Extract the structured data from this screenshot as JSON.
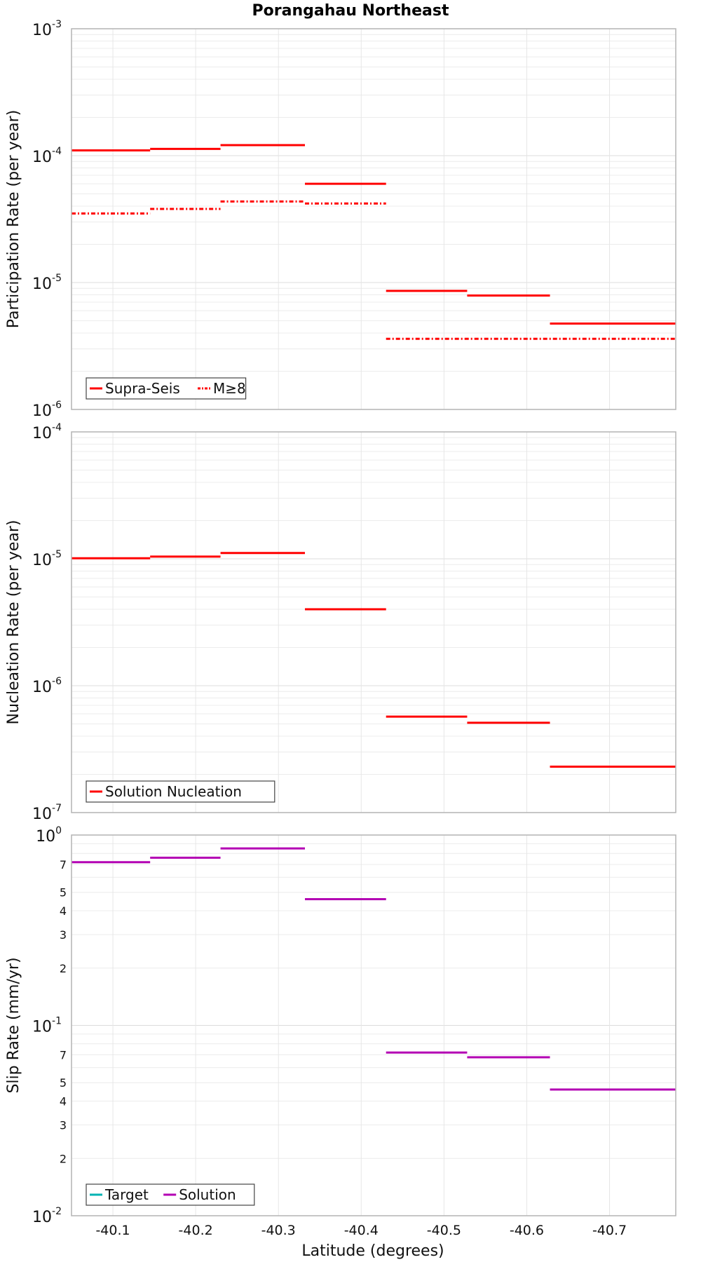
{
  "chart_data": {
    "type": "line",
    "title": "Porangahau Northeast",
    "xlabel": "Latitude (degrees)",
    "xlim": [
      -40.05,
      -40.78
    ],
    "x_ticks": [
      {
        "value": -40.1,
        "label": "-40.1"
      },
      {
        "value": -40.2,
        "label": "-40.2"
      },
      {
        "value": -40.3,
        "label": "-40.3"
      },
      {
        "value": -40.4,
        "label": "-40.4"
      },
      {
        "value": -40.5,
        "label": "-40.5"
      },
      {
        "value": -40.6,
        "label": "-40.6"
      },
      {
        "value": -40.7,
        "label": "-40.7"
      }
    ],
    "panels": [
      {
        "ylabel": "Participation Rate (per year)",
        "yscale": "log",
        "ylim": [
          1e-06,
          0.001
        ],
        "y_ticks": [
          {
            "value": 0.001,
            "base": "10",
            "exp": "-3"
          },
          {
            "value": 0.0001,
            "base": "10",
            "exp": "-4"
          },
          {
            "value": 1e-05,
            "base": "10",
            "exp": "-5"
          },
          {
            "value": 1e-06,
            "base": "10",
            "exp": "-6"
          }
        ],
        "legend_position": "bottom-left",
        "series": [
          {
            "name": "Supra-Seis",
            "color": "#ff0000",
            "dash": "solid",
            "segments": [
              {
                "x0": -40.05,
                "x1": -40.145,
                "y": 0.00011
              },
              {
                "x0": -40.145,
                "x1": -40.23,
                "y": 0.000113
              },
              {
                "x0": -40.23,
                "x1": -40.332,
                "y": 0.000121
              },
              {
                "x0": -40.332,
                "x1": -40.43,
                "y": 6e-05
              },
              {
                "x0": -40.43,
                "x1": -40.528,
                "y": 8.6e-06
              },
              {
                "x0": -40.528,
                "x1": -40.628,
                "y": 7.9e-06
              },
              {
                "x0": -40.628,
                "x1": -40.78,
                "y": 4.75e-06
              }
            ]
          },
          {
            "name": "M≥8",
            "color": "#ff0000",
            "dash": "dashdot",
            "segments": [
              {
                "x0": -40.05,
                "x1": -40.145,
                "y": 3.5e-05
              },
              {
                "x0": -40.145,
                "x1": -40.23,
                "y": 3.8e-05
              },
              {
                "x0": -40.23,
                "x1": -40.332,
                "y": 4.35e-05
              },
              {
                "x0": -40.332,
                "x1": -40.43,
                "y": 4.2e-05
              },
              {
                "x0": -40.43,
                "x1": -40.78,
                "y": 3.6e-06
              }
            ]
          }
        ]
      },
      {
        "ylabel": "Nucleation Rate (per year)",
        "yscale": "log",
        "ylim": [
          1e-07,
          0.0001
        ],
        "y_ticks": [
          {
            "value": 0.0001,
            "base": "10",
            "exp": "-4"
          },
          {
            "value": 1e-05,
            "base": "10",
            "exp": "-5"
          },
          {
            "value": 1e-06,
            "base": "10",
            "exp": "-6"
          },
          {
            "value": 1e-07,
            "base": "10",
            "exp": "-7"
          }
        ],
        "legend_position": "bottom-left",
        "series": [
          {
            "name": "Solution Nucleation",
            "color": "#ff0000",
            "dash": "solid",
            "segments": [
              {
                "x0": -40.05,
                "x1": -40.145,
                "y": 1.01e-05
              },
              {
                "x0": -40.145,
                "x1": -40.23,
                "y": 1.04e-05
              },
              {
                "x0": -40.23,
                "x1": -40.332,
                "y": 1.11e-05
              },
              {
                "x0": -40.332,
                "x1": -40.43,
                "y": 4e-06
              },
              {
                "x0": -40.43,
                "x1": -40.528,
                "y": 5.7e-07
              },
              {
                "x0": -40.528,
                "x1": -40.628,
                "y": 5.1e-07
              },
              {
                "x0": -40.628,
                "x1": -40.78,
                "y": 2.3e-07
              }
            ]
          }
        ]
      },
      {
        "ylabel": "Slip Rate (mm/yr)",
        "yscale": "log",
        "ylim": [
          0.01,
          1.0
        ],
        "y_ticks": [
          {
            "value": 1.0,
            "base": "10",
            "exp": "0"
          },
          {
            "value": 0.7,
            "label": "7"
          },
          {
            "value": 0.5,
            "label": "5"
          },
          {
            "value": 0.4,
            "label": "4"
          },
          {
            "value": 0.3,
            "label": "3"
          },
          {
            "value": 0.2,
            "label": "2"
          },
          {
            "value": 0.1,
            "base": "10",
            "exp": "-1"
          },
          {
            "value": 0.07,
            "label": "7"
          },
          {
            "value": 0.05,
            "label": "5"
          },
          {
            "value": 0.04,
            "label": "4"
          },
          {
            "value": 0.03,
            "label": "3"
          },
          {
            "value": 0.02,
            "label": "2"
          },
          {
            "value": 0.01,
            "base": "10",
            "exp": "-2"
          }
        ],
        "legend_position": "bottom-left",
        "series": [
          {
            "name": "Target",
            "color": "#00b3b3",
            "dash": "solid",
            "segments": []
          },
          {
            "name": "Solution",
            "color": "#b300b3",
            "dash": "solid",
            "segments": [
              {
                "x0": -40.05,
                "x1": -40.145,
                "y": 0.72
              },
              {
                "x0": -40.145,
                "x1": -40.23,
                "y": 0.76
              },
              {
                "x0": -40.23,
                "x1": -40.332,
                "y": 0.85
              },
              {
                "x0": -40.332,
                "x1": -40.43,
                "y": 0.46
              },
              {
                "x0": -40.43,
                "x1": -40.528,
                "y": 0.072
              },
              {
                "x0": -40.528,
                "x1": -40.628,
                "y": 0.068
              },
              {
                "x0": -40.628,
                "x1": -40.78,
                "y": 0.046
              }
            ]
          }
        ]
      }
    ]
  }
}
